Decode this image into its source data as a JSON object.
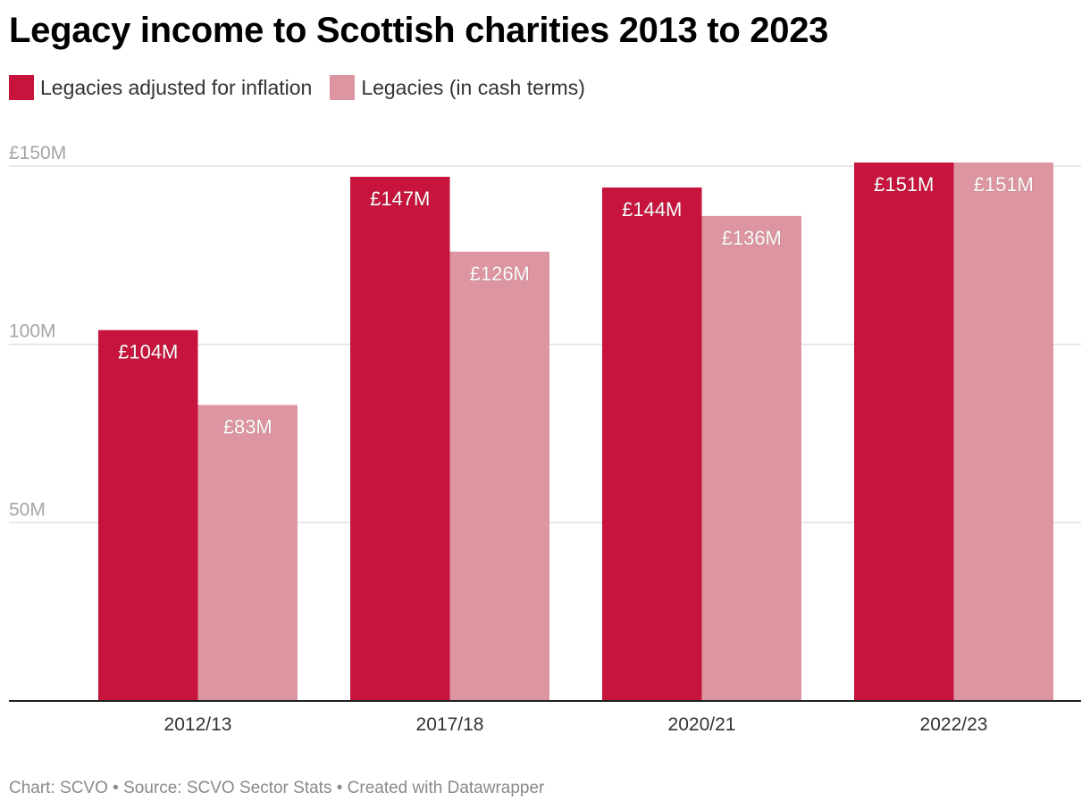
{
  "title": "Legacy income to Scottish charities 2013 to 2023",
  "footer": "Chart: SCVO • Source: SCVO Sector Stats • Created with Datawrapper",
  "colors": {
    "inflation_adjusted": "#c6143c",
    "cash_terms": "#dd95a1"
  },
  "chart_data": {
    "type": "bar",
    "title": "Legacy income to Scottish charities 2013 to 2023",
    "categories": [
      "2012/13",
      "2017/18",
      "2020/21",
      "2022/23"
    ],
    "series": [
      {
        "name": "Legacies adjusted for inflation",
        "values": [
          104,
          147,
          144,
          151
        ],
        "labels": [
          "£104M",
          "£147M",
          "£144M",
          "£151M"
        ],
        "color": "#c6143c"
      },
      {
        "name": "Legacies (in cash terms)",
        "values": [
          83,
          126,
          136,
          151
        ],
        "labels": [
          "£83M",
          "£126M",
          "£136M",
          "£151M"
        ],
        "color": "#dd95a1"
      }
    ],
    "yticks": [
      {
        "value": 150,
        "label": "£150M"
      },
      {
        "value": 100,
        "label": "100M"
      },
      {
        "value": 50,
        "label": "50M"
      }
    ],
    "ylim": [
      0,
      150
    ],
    "xlabel": "",
    "ylabel": "",
    "grid": true,
    "legend": "top-left"
  }
}
